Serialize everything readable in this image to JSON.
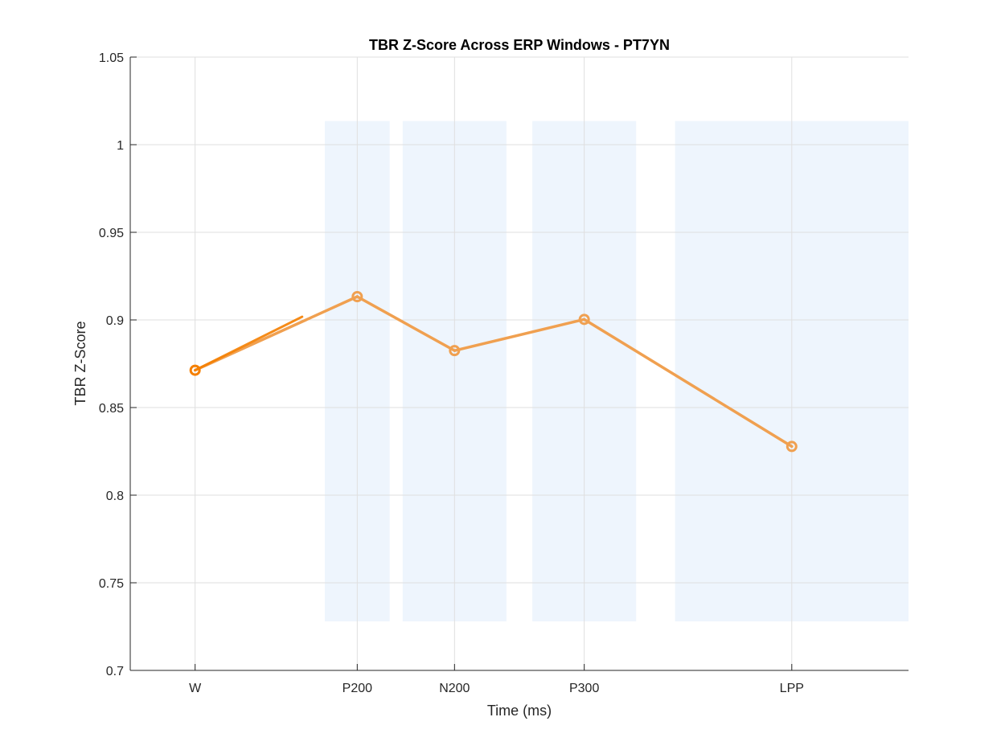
{
  "chart_data": {
    "type": "line",
    "title": "TBR Z-Score Across ERP Windows - PT7YN",
    "xlabel": "Time (ms)",
    "ylabel": "TBR Z-Score",
    "ylim": [
      0.7,
      1.05
    ],
    "xlim": [
      -50,
      550
    ],
    "yticks": [
      0.7,
      0.75,
      0.8,
      0.85,
      0.9,
      0.95,
      1,
      1.05
    ],
    "ytick_labels": [
      "0.7",
      "0.75",
      "0.8",
      "0.85",
      "0.9",
      "0.95",
      "1",
      "1.05"
    ],
    "grid": true,
    "legend": "none",
    "categories": [
      "W",
      "P200",
      "N200",
      "P300",
      "LPP"
    ],
    "x": [
      0,
      125,
      200,
      300,
      460
    ],
    "values": [
      0.8713,
      0.9133,
      0.8825,
      0.9003,
      0.8278
    ],
    "shaded_windows": [
      {
        "x0": 100,
        "x1": 150
      },
      {
        "x0": 160,
        "x1": 240
      },
      {
        "x0": 260,
        "x1": 340
      },
      {
        "x0": 370,
        "x1": 550
      }
    ],
    "shade_ylim": [
      0.728,
      1.0135
    ],
    "colors": {
      "line": "#f0a050",
      "line_dark": "#f57f00",
      "marker": "#f0a050",
      "shade": "#eef5fd",
      "grid": "#dfdfdf",
      "axis": "#262626"
    }
  }
}
